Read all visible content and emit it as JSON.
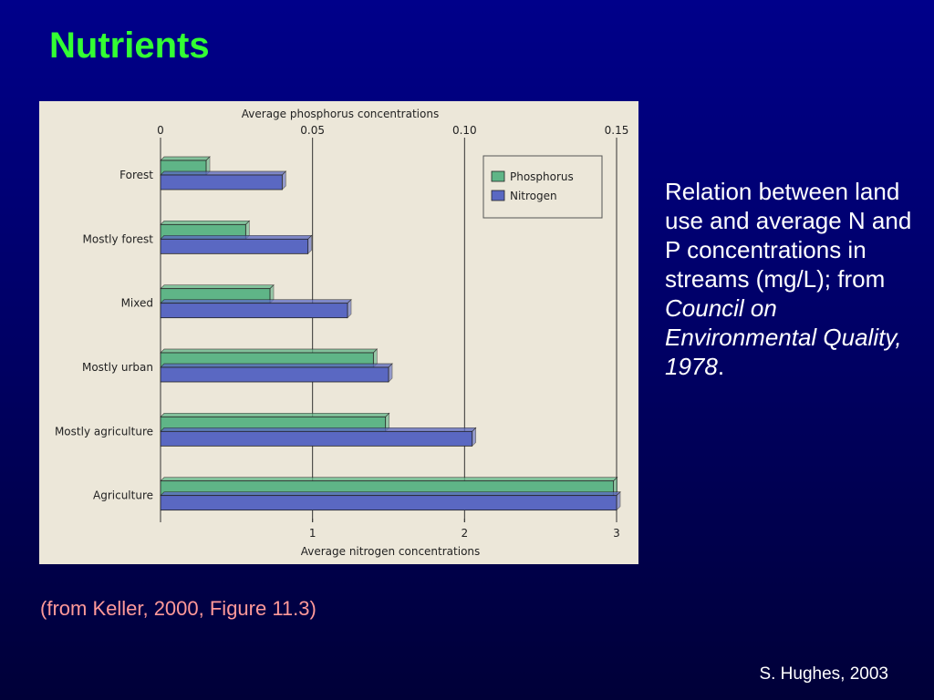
{
  "slide": {
    "title": "Nutrients",
    "caption_plain_1": "Relation between land use and average N and P concentrations in streams (mg/L); from ",
    "caption_italic": "Council on Environmental Quality, 1978",
    "caption_plain_2": ".",
    "source": "(from Keller, 2000, Figure 11.3)",
    "credit": "S. Hughes, 2003"
  },
  "colors": {
    "background": "#000070",
    "title": "#33ff33",
    "phosphorus": "#5fb587",
    "nitrogen": "#5a68c2",
    "chart_bg": "#ece7d9",
    "source": "#ff9999"
  },
  "chart_data": {
    "type": "bar",
    "orientation": "horizontal",
    "categories": [
      "Forest",
      "Mostly forest",
      "Mixed",
      "Mostly urban",
      "Mostly agriculture",
      "Agriculture"
    ],
    "series": [
      {
        "name": "Phosphorus",
        "axis": "top",
        "values": [
          0.015,
          0.028,
          0.036,
          0.07,
          0.074,
          0.149
        ]
      },
      {
        "name": "Nitrogen",
        "axis": "bottom",
        "values": [
          0.8,
          0.97,
          1.23,
          1.5,
          2.05,
          3.0
        ]
      }
    ],
    "top_axis": {
      "label": "Average phosphorus concentrations",
      "ticks": [
        "0",
        "0.05",
        "0.10",
        "0.15"
      ],
      "tick_values": [
        0,
        0.05,
        0.1,
        0.15
      ],
      "range": [
        0,
        0.15
      ]
    },
    "bottom_axis": {
      "label": "Average nitrogen concentrations",
      "ticks": [
        "1",
        "2",
        "3"
      ],
      "tick_values": [
        1,
        2,
        3
      ],
      "range": [
        0,
        3
      ]
    },
    "grid": true,
    "legend": "top-right"
  }
}
